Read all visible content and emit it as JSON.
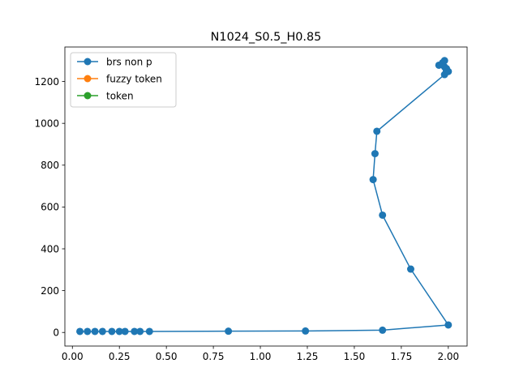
{
  "chart_data": {
    "type": "line",
    "title": "N1024_S0.5_H0.85",
    "xlabel": "",
    "ylabel": "",
    "xlim": [
      -0.04,
      2.1
    ],
    "ylim": [
      -65,
      1365
    ],
    "xticks": [
      0.0,
      0.25,
      0.5,
      0.75,
      1.0,
      1.25,
      1.5,
      1.75,
      2.0
    ],
    "xtick_labels": [
      "0.00",
      "0.25",
      "0.50",
      "0.75",
      "1.00",
      "1.25",
      "1.50",
      "1.75",
      "2.00"
    ],
    "yticks": [
      0,
      200,
      400,
      600,
      800,
      1000,
      1200
    ],
    "ytick_labels": [
      "0",
      "200",
      "400",
      "600",
      "800",
      "1000",
      "1200"
    ],
    "grid": false,
    "legend_position": "top-left",
    "series": [
      {
        "name": "brs non p",
        "color": "#1f77b4",
        "marker": "circle",
        "points": [
          [
            0.04,
            5
          ],
          [
            0.08,
            5
          ],
          [
            0.12,
            5
          ],
          [
            0.16,
            5
          ],
          [
            0.21,
            5
          ],
          [
            0.25,
            5
          ],
          [
            0.28,
            5
          ],
          [
            0.33,
            5
          ],
          [
            0.36,
            5
          ],
          [
            0.41,
            5
          ],
          [
            0.83,
            6
          ],
          [
            1.24,
            7
          ],
          [
            1.65,
            11
          ],
          [
            2.0,
            36
          ],
          [
            1.8,
            303
          ],
          [
            1.65,
            561
          ],
          [
            1.6,
            731
          ],
          [
            1.61,
            855
          ],
          [
            1.62,
            962
          ],
          [
            1.98,
            1233
          ],
          [
            1.99,
            1252
          ],
          [
            2.0,
            1248
          ],
          [
            1.99,
            1262
          ],
          [
            1.98,
            1270
          ],
          [
            1.95,
            1278
          ],
          [
            1.97,
            1290
          ],
          [
            1.98,
            1300
          ]
        ]
      },
      {
        "name": "fuzzy token",
        "color": "#ff7f0e",
        "marker": "circle",
        "points": []
      },
      {
        "name": "token",
        "color": "#2ca02c",
        "marker": "circle",
        "points": []
      }
    ]
  }
}
